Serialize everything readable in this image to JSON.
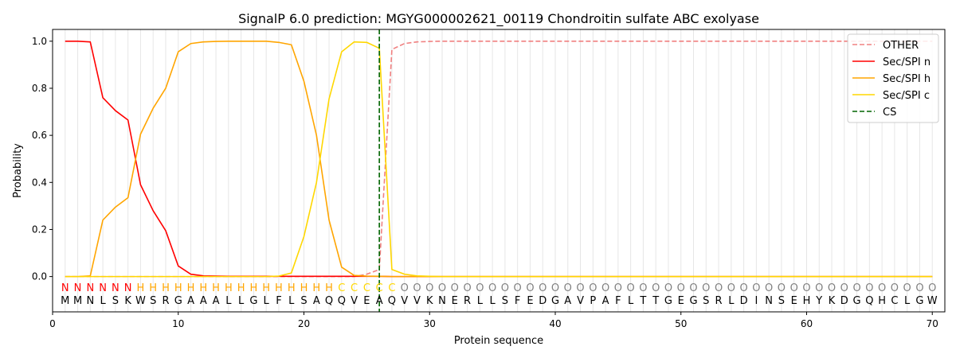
{
  "chart_data": {
    "type": "line",
    "title": "SignalP 6.0 prediction: MGYG000002621_00119 Chondroitin sulfate ABC exolyase",
    "xlabel": "Protein sequence",
    "ylabel": "Probability",
    "xlim": [
      0,
      71
    ],
    "ylim": [
      -0.15,
      1.05
    ],
    "xticks": [
      0,
      10,
      20,
      30,
      40,
      50,
      60,
      70
    ],
    "yticks": [
      0.0,
      0.2,
      0.4,
      0.6,
      0.8,
      1.0
    ],
    "xtick_labels": [
      "0",
      "10",
      "20",
      "30",
      "40",
      "50",
      "60",
      "70"
    ],
    "ytick_labels": [
      "0.0",
      "0.2",
      "0.4",
      "0.6",
      "0.8",
      "1.0"
    ],
    "legend_position": "top-right",
    "vertical_grid": true,
    "sequence": "MMNLSKWSRGAAALLGLFLSAQQVEAQVVKNERLLSFEDGAVPAFLTTGEGSRLDINSEHYKDGQHCLGW",
    "region_labels": "NNNNNNHHHHHHHHHHHHHHHHCCCCCOOOOOOOOOOOOOOOOOOOOOOOOOOOOOOOOOOOOOOOOOOOO",
    "region_colors": {
      "N": "#ff0000",
      "H": "#ffa500",
      "C": "#ffd700",
      "O": "#808080"
    },
    "cleavage_site": 26,
    "series": [
      {
        "name": "OTHER",
        "color": "#f08080",
        "dash": "dashed",
        "values": [
          0,
          0,
          0,
          0,
          0,
          0,
          0,
          0,
          0,
          0,
          0,
          0,
          0,
          0,
          0,
          0,
          0,
          0,
          0,
          0,
          0,
          0,
          0,
          0,
          0.01,
          0.03,
          0.965,
          0.99,
          0.997,
          0.999,
          1,
          1,
          1,
          1,
          1,
          1,
          1,
          1,
          1,
          1,
          1,
          1,
          1,
          1,
          1,
          1,
          1,
          1,
          1,
          1,
          1,
          1,
          1,
          1,
          1,
          1,
          1,
          1,
          1,
          1,
          1,
          1,
          1,
          1,
          1,
          1,
          1,
          1,
          1,
          1
        ]
      },
      {
        "name": "Sec/SPI n",
        "color": "#ff0000",
        "dash": "solid",
        "values": [
          1.0,
          1.0,
          0.997,
          0.76,
          0.705,
          0.665,
          0.39,
          0.28,
          0.195,
          0.045,
          0.01,
          0.003,
          0.002,
          0.001,
          0.001,
          0.001,
          0.001,
          0.001,
          0.001,
          0.001,
          0.001,
          0.001,
          0.001,
          0.001,
          0.001,
          0.001,
          0,
          0,
          0,
          0,
          0,
          0,
          0,
          0,
          0,
          0,
          0,
          0,
          0,
          0,
          0,
          0,
          0,
          0,
          0,
          0,
          0,
          0,
          0,
          0,
          0,
          0,
          0,
          0,
          0,
          0,
          0,
          0,
          0,
          0,
          0,
          0,
          0,
          0,
          0,
          0,
          0,
          0,
          0,
          0
        ]
      },
      {
        "name": "Sec/SPI h",
        "color": "#ffa500",
        "dash": "solid",
        "values": [
          0,
          0,
          0.003,
          0.24,
          0.295,
          0.335,
          0.605,
          0.715,
          0.8,
          0.955,
          0.99,
          0.997,
          0.999,
          1.0,
          1.0,
          1.0,
          1.0,
          0.995,
          0.985,
          0.83,
          0.6,
          0.24,
          0.04,
          0.005,
          0.002,
          0.001,
          0,
          0,
          0,
          0,
          0,
          0,
          0,
          0,
          0,
          0,
          0,
          0,
          0,
          0,
          0,
          0,
          0,
          0,
          0,
          0,
          0,
          0,
          0,
          0,
          0,
          0,
          0,
          0,
          0,
          0,
          0,
          0,
          0,
          0,
          0,
          0,
          0,
          0,
          0,
          0,
          0,
          0,
          0,
          0
        ]
      },
      {
        "name": "Sec/SPI c",
        "color": "#ffd700",
        "dash": "solid",
        "values": [
          0,
          0,
          0,
          0,
          0,
          0,
          0,
          0,
          0,
          0,
          0,
          0,
          0,
          0,
          0,
          0,
          0,
          0.002,
          0.015,
          0.17,
          0.4,
          0.755,
          0.955,
          0.997,
          0.995,
          0.97,
          0.03,
          0.01,
          0.003,
          0.001,
          0,
          0,
          0,
          0,
          0,
          0,
          0,
          0,
          0,
          0,
          0,
          0,
          0,
          0,
          0,
          0,
          0,
          0,
          0,
          0,
          0,
          0,
          0,
          0,
          0,
          0,
          0,
          0,
          0,
          0,
          0,
          0,
          0,
          0,
          0,
          0,
          0,
          0,
          0,
          0
        ]
      }
    ],
    "cs_legend": {
      "name": "CS",
      "color": "#006400",
      "dash": "dashed"
    }
  }
}
